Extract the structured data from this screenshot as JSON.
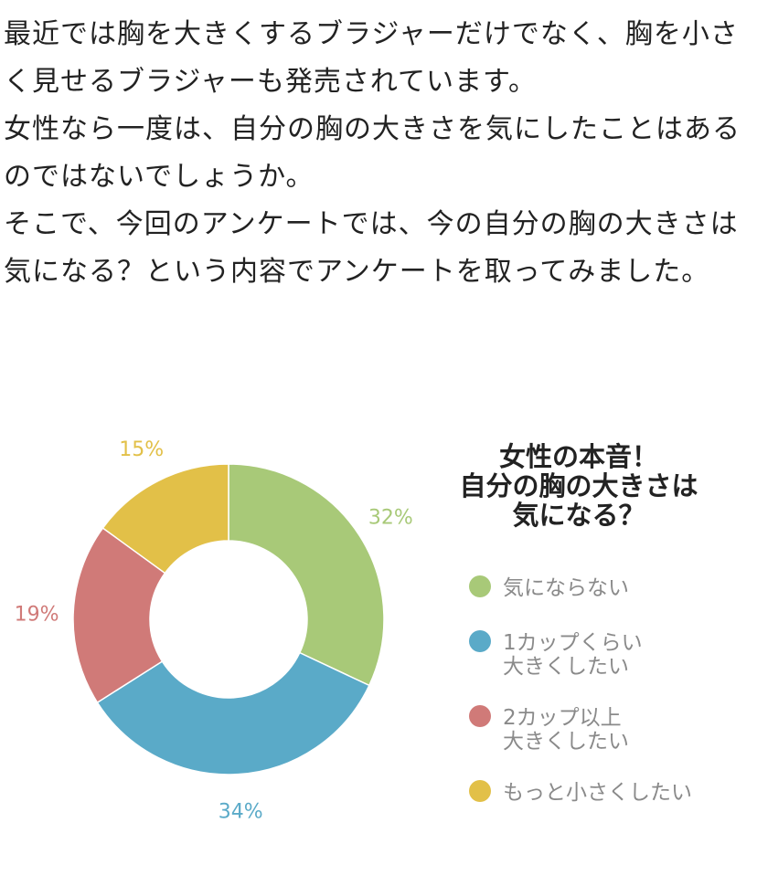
{
  "article": {
    "paragraphs": [
      "最近では胸を大きくするブラジャーだけでなく、胸を小さく見せるブラジャーも発売されています。",
      "女性なら一度は、自分の胸の大きさを気にしたことはあるのではないでしょうか。",
      "そこで、今回のアンケートでは、今の自分の胸の大きさは気になる？という内容でアンケートを取ってみました。"
    ]
  },
  "chart_data": {
    "type": "pie",
    "style": "donut",
    "title": [
      "女性の本音！",
      "自分の胸の大きさは",
      "気になる？"
    ],
    "unit": "%",
    "slices": [
      {
        "label": [
          "気にならない"
        ],
        "value": 32,
        "color": "#a8c978"
      },
      {
        "label": [
          "1カップくらい",
          "大きくしたい"
        ],
        "value": 34,
        "color": "#5aaac8"
      },
      {
        "label": [
          "2カップ以上",
          "大きくしたい"
        ],
        "value": 19,
        "color": "#d07a78"
      },
      {
        "label": [
          "もっと小さくしたい"
        ],
        "value": 15,
        "color": "#e2c048"
      }
    ],
    "legend_position": "right"
  }
}
